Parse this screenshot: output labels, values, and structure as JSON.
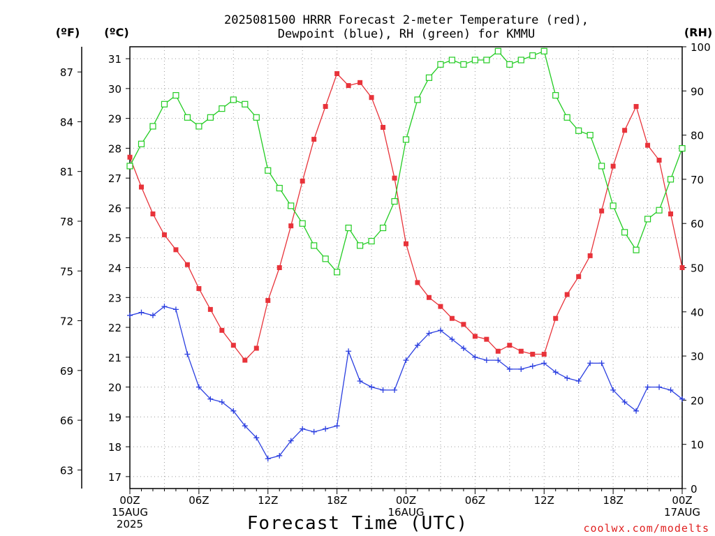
{
  "chart_data": {
    "type": "line",
    "title_line1": "2025081500 HRRR Forecast 2-meter Temperature (red),",
    "title_line2": "Dewpoint (blue), RH (green) for KMMU",
    "xlabel": "Forecast Time (UTC)",
    "unit_f": "(ºF)",
    "unit_c": "(ºC)",
    "unit_rh": "(RH)",
    "credit": "coolwx.com/modelts",
    "x_tick_labels": [
      {
        "hour": 0,
        "lines": [
          "00Z",
          "15AUG",
          "2025"
        ]
      },
      {
        "hour": 6,
        "lines": [
          "06Z"
        ]
      },
      {
        "hour": 12,
        "lines": [
          "12Z"
        ]
      },
      {
        "hour": 18,
        "lines": [
          "18Z"
        ]
      },
      {
        "hour": 24,
        "lines": [
          "00Z",
          "16AUG"
        ]
      },
      {
        "hour": 30,
        "lines": [
          "06Z"
        ]
      },
      {
        "hour": 36,
        "lines": [
          "12Z"
        ]
      },
      {
        "hour": 42,
        "lines": [
          "18Z"
        ]
      },
      {
        "hour": 48,
        "lines": [
          "00Z",
          "17AUG"
        ]
      }
    ],
    "x_range_hours": [
      0,
      48
    ],
    "y_celsius_range": [
      16.6,
      31.4
    ],
    "y_celsius_ticks": [
      17,
      18,
      19,
      20,
      21,
      22,
      23,
      24,
      25,
      26,
      27,
      28,
      29,
      30,
      31
    ],
    "y_fahrenheit_ticks": [
      63,
      66,
      69,
      72,
      75,
      78,
      81,
      84,
      87
    ],
    "y_rh_range": [
      0,
      100
    ],
    "y_rh_ticks": [
      0,
      10,
      20,
      30,
      40,
      50,
      60,
      70,
      80,
      90,
      100
    ],
    "grid": true,
    "x_hours": [
      0,
      1,
      2,
      3,
      4,
      5,
      6,
      7,
      8,
      9,
      10,
      11,
      12,
      13,
      14,
      15,
      16,
      17,
      18,
      19,
      20,
      21,
      22,
      23,
      24,
      25,
      26,
      27,
      28,
      29,
      30,
      31,
      32,
      33,
      34,
      35,
      36,
      37,
      38,
      39,
      40,
      41,
      42,
      43,
      44,
      45,
      46,
      47,
      48
    ],
    "series": [
      {
        "key": "temperature",
        "color": "#e8333a",
        "marker": "filled-square",
        "axis": "celsius",
        "values": [
          27.7,
          26.7,
          25.8,
          25.1,
          24.6,
          24.1,
          23.3,
          22.6,
          21.9,
          21.4,
          20.9,
          21.3,
          22.9,
          24.0,
          25.4,
          26.9,
          28.3,
          29.4,
          30.5,
          30.1,
          30.2,
          29.7,
          28.7,
          27.0,
          24.8,
          23.5,
          23.0,
          22.7,
          22.3,
          22.1,
          21.7,
          21.6,
          21.2,
          21.4,
          21.2,
          21.1,
          21.1,
          22.3,
          23.1,
          23.7,
          24.4,
          25.9,
          27.4,
          28.6,
          29.4,
          28.1,
          27.6,
          25.8,
          24.0
        ]
      },
      {
        "key": "dewpoint",
        "color": "#2a3ee0",
        "marker": "plus",
        "axis": "celsius",
        "values": [
          22.4,
          22.5,
          22.4,
          22.7,
          22.6,
          21.1,
          20.0,
          19.6,
          19.5,
          19.2,
          18.7,
          18.3,
          17.6,
          17.7,
          18.2,
          18.6,
          18.5,
          18.6,
          18.7,
          21.2,
          20.2,
          20.0,
          19.9,
          19.9,
          20.9,
          21.4,
          21.8,
          21.9,
          21.6,
          21.3,
          21.0,
          20.9,
          20.9,
          20.6,
          20.6,
          20.7,
          20.8,
          20.5,
          20.3,
          20.2,
          20.8,
          20.8,
          19.9,
          19.5,
          19.2,
          20.0,
          20.0,
          19.9,
          19.6
        ]
      },
      {
        "key": "rh",
        "color": "#22cc22",
        "marker": "hollow-square",
        "axis": "rh",
        "values": [
          73,
          78,
          82,
          87,
          89,
          84,
          82,
          84,
          86,
          88,
          87,
          84,
          72,
          68,
          64,
          60,
          55,
          52,
          49,
          59,
          55,
          56,
          59,
          65,
          79,
          88,
          93,
          96,
          97,
          96,
          97,
          97,
          99,
          96,
          97,
          98,
          99,
          89,
          84,
          81,
          80,
          73,
          64,
          58,
          54,
          61,
          63,
          70,
          77
        ]
      }
    ]
  }
}
